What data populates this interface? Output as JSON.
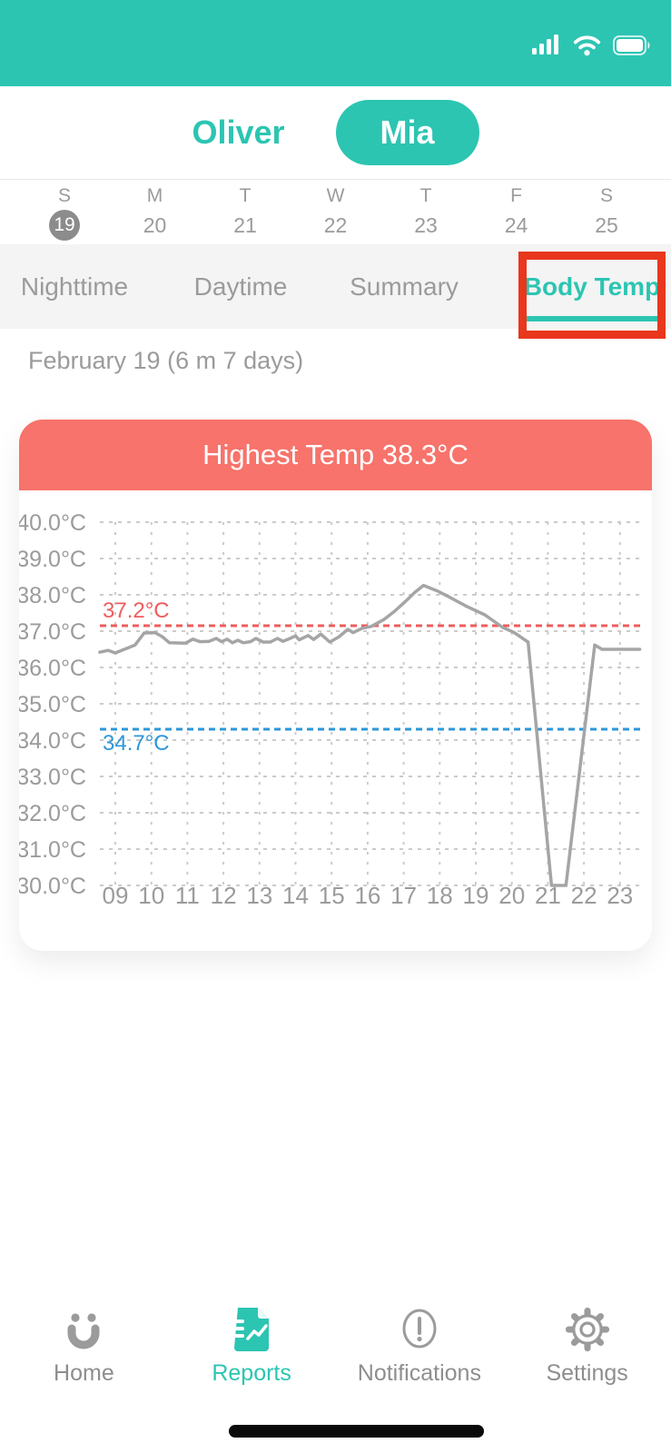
{
  "colors": {
    "accent_teal": "#2cc5b2",
    "header_coral": "#f7736b",
    "annotation_red": "#e8371c",
    "threshold_red": "#ef5c5c",
    "threshold_blue": "#2e97d8",
    "muted_gray": "#9b9b9b"
  },
  "status_bar": {
    "icons": [
      "cellular-signal-icon",
      "wifi-icon",
      "battery-icon"
    ]
  },
  "profile_switcher": {
    "options": [
      {
        "label": "Oliver",
        "selected": false
      },
      {
        "label": "Mia",
        "selected": true
      }
    ]
  },
  "calendar": {
    "days": [
      {
        "dow": "S",
        "date": "19",
        "selected": true
      },
      {
        "dow": "M",
        "date": "20",
        "selected": false
      },
      {
        "dow": "T",
        "date": "21",
        "selected": false
      },
      {
        "dow": "W",
        "date": "22",
        "selected": false
      },
      {
        "dow": "T",
        "date": "23",
        "selected": false
      },
      {
        "dow": "F",
        "date": "24",
        "selected": false
      },
      {
        "dow": "S",
        "date": "25",
        "selected": false
      }
    ]
  },
  "tabs": {
    "items": [
      {
        "label": "Nighttime",
        "active": false
      },
      {
        "label": "Daytime",
        "active": false
      },
      {
        "label": "Summary",
        "active": false
      },
      {
        "label": "Body Temp",
        "active": true,
        "annotated": true
      }
    ]
  },
  "report": {
    "date_label": "February 19 (6 m 7 days)"
  },
  "chart_data": {
    "type": "line",
    "title": "Highest Temp 38.3°C",
    "highest_temp": "38.3°C",
    "units": "°C",
    "x_ticks": [
      "09",
      "10",
      "11",
      "12",
      "13",
      "14",
      "15",
      "16",
      "17",
      "18",
      "19",
      "20",
      "21",
      "22",
      "23"
    ],
    "y_ticks": [
      "40.0°C",
      "39.0°C",
      "38.0°C",
      "37.0°C",
      "36.0°C",
      "35.0°C",
      "34.0°C",
      "33.0°C",
      "32.0°C",
      "31.0°C",
      "30.0°C"
    ],
    "xlim": [
      8.5,
      23.7
    ],
    "ylim": [
      30,
      40
    ],
    "grid": true,
    "axis_color": "#9b9b9b",
    "grid_color": "#cbcbcb",
    "thresholds": [
      {
        "label": "37.2°C",
        "value": 37.2,
        "position": 37.15,
        "color": "#ef5c5c",
        "label_side": "above"
      },
      {
        "label": "34.7°C",
        "value": 34.7,
        "position": 34.3,
        "color": "#2e97d8",
        "label_side": "below"
      }
    ],
    "series": [
      {
        "name": "body-temperature",
        "color": "#a5a5a5",
        "points": [
          [
            8.57,
            36.42
          ],
          [
            8.8,
            36.47
          ],
          [
            9.0,
            36.4
          ],
          [
            9.3,
            36.52
          ],
          [
            9.55,
            36.62
          ],
          [
            9.8,
            36.95
          ],
          [
            10.1,
            36.96
          ],
          [
            10.3,
            36.85
          ],
          [
            10.5,
            36.68
          ],
          [
            10.95,
            36.67
          ],
          [
            11.15,
            36.78
          ],
          [
            11.35,
            36.71
          ],
          [
            11.6,
            36.72
          ],
          [
            11.8,
            36.8
          ],
          [
            11.95,
            36.71
          ],
          [
            12.1,
            36.78
          ],
          [
            12.25,
            36.68
          ],
          [
            12.4,
            36.75
          ],
          [
            12.55,
            36.68
          ],
          [
            12.75,
            36.71
          ],
          [
            12.9,
            36.8
          ],
          [
            13.1,
            36.7
          ],
          [
            13.3,
            36.7
          ],
          [
            13.5,
            36.8
          ],
          [
            13.65,
            36.72
          ],
          [
            13.85,
            36.8
          ],
          [
            14.0,
            36.87
          ],
          [
            14.1,
            36.76
          ],
          [
            14.35,
            36.88
          ],
          [
            14.5,
            36.77
          ],
          [
            14.7,
            36.92
          ],
          [
            14.95,
            36.7
          ],
          [
            15.2,
            36.84
          ],
          [
            15.45,
            37.05
          ],
          [
            15.6,
            36.96
          ],
          [
            15.85,
            37.08
          ],
          [
            16.1,
            37.13
          ],
          [
            16.45,
            37.32
          ],
          [
            16.75,
            37.55
          ],
          [
            17.05,
            37.82
          ],
          [
            17.3,
            38.06
          ],
          [
            17.55,
            38.26
          ],
          [
            17.95,
            38.1
          ],
          [
            18.3,
            37.92
          ],
          [
            18.75,
            37.68
          ],
          [
            19.25,
            37.45
          ],
          [
            19.75,
            37.1
          ],
          [
            20.05,
            36.97
          ],
          [
            20.45,
            36.7
          ],
          [
            21.1,
            30.0
          ],
          [
            21.5,
            30.0
          ],
          [
            22.3,
            36.62
          ],
          [
            22.5,
            36.5
          ],
          [
            23.55,
            36.5
          ]
        ]
      }
    ]
  },
  "bottom_nav": {
    "items": [
      {
        "label": "Home",
        "icon": "home-logo-icon",
        "active": false
      },
      {
        "label": "Reports",
        "icon": "reports-icon",
        "active": true
      },
      {
        "label": "Notifications",
        "icon": "notifications-icon",
        "active": false
      },
      {
        "label": "Settings",
        "icon": "settings-icon",
        "active": false
      }
    ]
  }
}
